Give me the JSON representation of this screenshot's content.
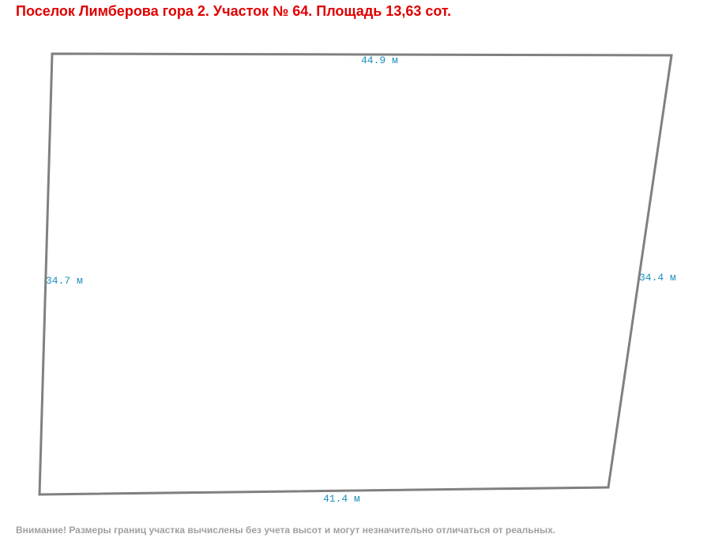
{
  "header": {
    "title": "Поселок Лимберова гора 2. Участок № 64. Площадь 13,63 сот."
  },
  "plot": {
    "edges": [
      {
        "side": "top",
        "label": "44.9 м"
      },
      {
        "side": "left",
        "label": "34.7 м"
      },
      {
        "side": "right",
        "label": "34.4 м"
      },
      {
        "side": "bottom",
        "label": "41.4 м"
      }
    ]
  },
  "footer": {
    "note": "Внимание! Размеры границ участка вычислены без учета высот и могут незначительно отличаться от реальных."
  }
}
